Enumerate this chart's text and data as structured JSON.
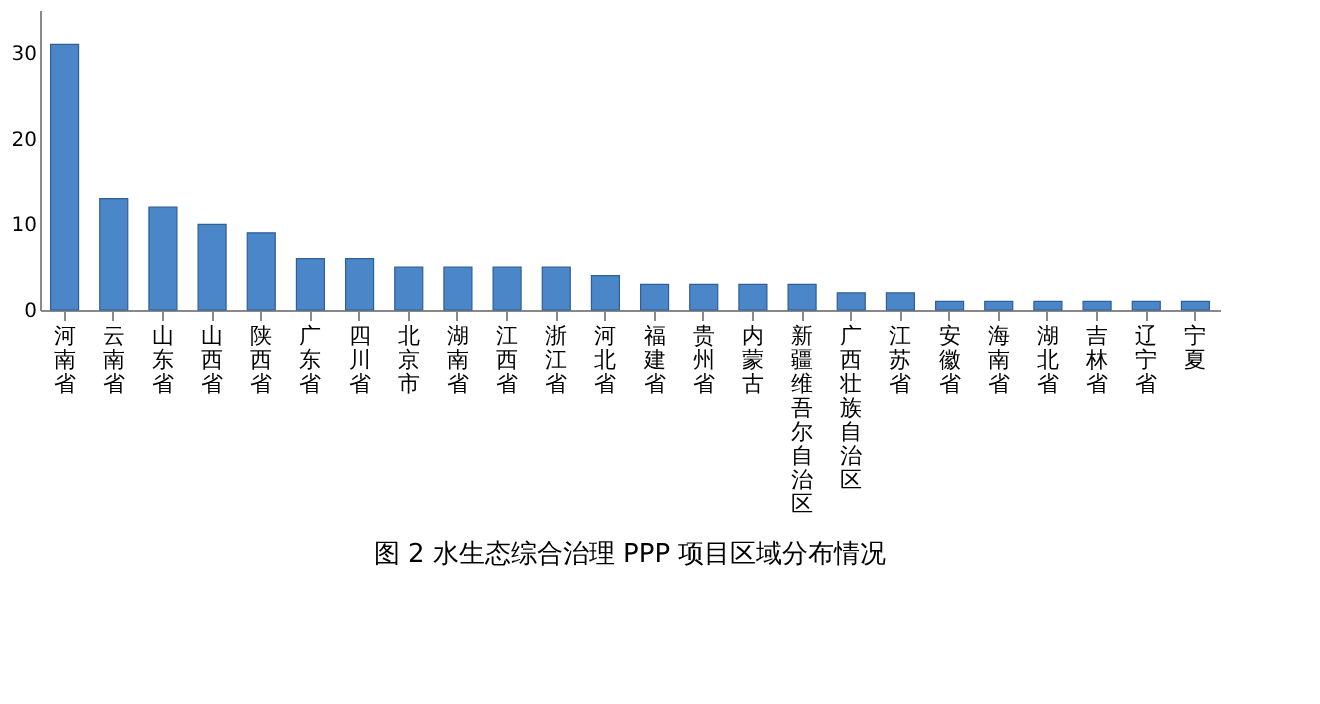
{
  "chart_data": {
    "type": "bar",
    "title": "图 2   水生态综合治理 PPP 项目区域分布情况",
    "categories": [
      "河南省",
      "云南省",
      "山东省",
      "山西省",
      "陕西省",
      "广东省",
      "四川省",
      "北京市",
      "湖南省",
      "江西省",
      "浙江省",
      "河北省",
      "福建省",
      "贵州省",
      "内蒙古",
      "新疆维吾尔自治区",
      "广西壮族自治区",
      "江苏省",
      "安徽省",
      "海南省",
      "湖北省",
      "吉林省",
      "辽宁省",
      "宁夏"
    ],
    "values": [
      31,
      13,
      12,
      10,
      9,
      6,
      6,
      5,
      5,
      5,
      5,
      4,
      3,
      3,
      3,
      3,
      2,
      2,
      1,
      1,
      1,
      1,
      1,
      1
    ],
    "color": "#4a86c8",
    "ylim": [
      0,
      35
    ],
    "yticks": [
      0,
      10,
      20,
      30
    ],
    "grid": false
  }
}
